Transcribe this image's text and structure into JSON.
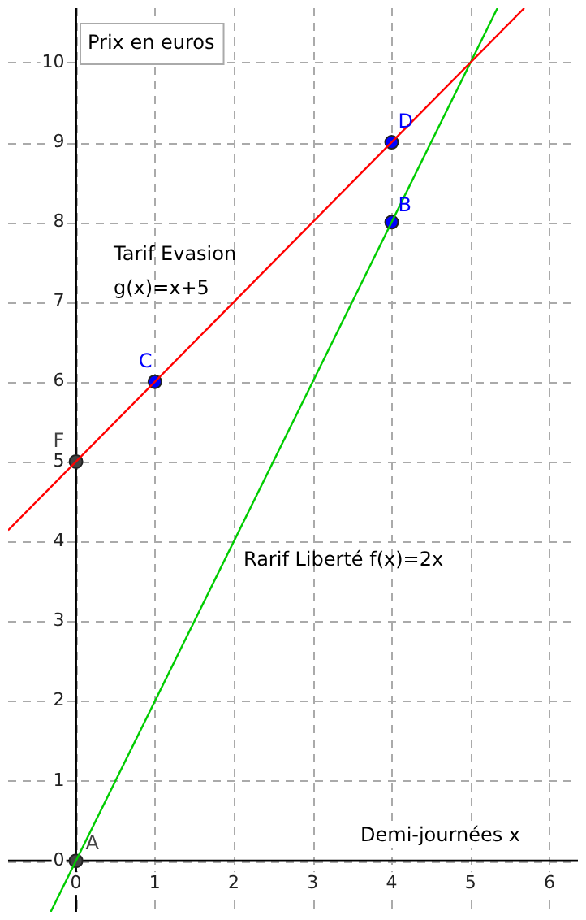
{
  "chart_data": {
    "type": "line",
    "xlabel": "Demi-journées x",
    "ylabel": "Prix en euros",
    "xlim": [
      -0.86,
      6.36
    ],
    "ylim": [
      -0.64,
      10.68
    ],
    "xticks": [
      0,
      1,
      2,
      3,
      4,
      5,
      6
    ],
    "yticks": [
      0,
      1,
      2,
      3,
      4,
      5,
      6,
      7,
      8,
      9,
      10
    ],
    "grid": true,
    "annotations": [
      "Tarif Evasion\ng(x)=x+5",
      "Rarif Liberté f(x)=2x"
    ],
    "series": [
      {
        "color": "#ff0000",
        "x": [
          -0.86,
          5.68
        ],
        "values": [
          4.14,
          10.68
        ]
      },
      {
        "color": "#00cc00",
        "x": [
          -0.32,
          5.34
        ],
        "values": [
          -0.64,
          10.68
        ]
      },
      {
        "type": "scatter",
        "marker": "circle",
        "x": [
          0,
          4,
          1,
          4,
          0
        ],
        "values": [
          0,
          8,
          6,
          9,
          5
        ],
        "colors": [
          "#444444",
          "#0000ff",
          "#0000ff",
          "#0000ff",
          "#444444"
        ],
        "value_labels": [
          "A",
          "B",
          "C",
          "D",
          "F"
        ]
      }
    ]
  }
}
